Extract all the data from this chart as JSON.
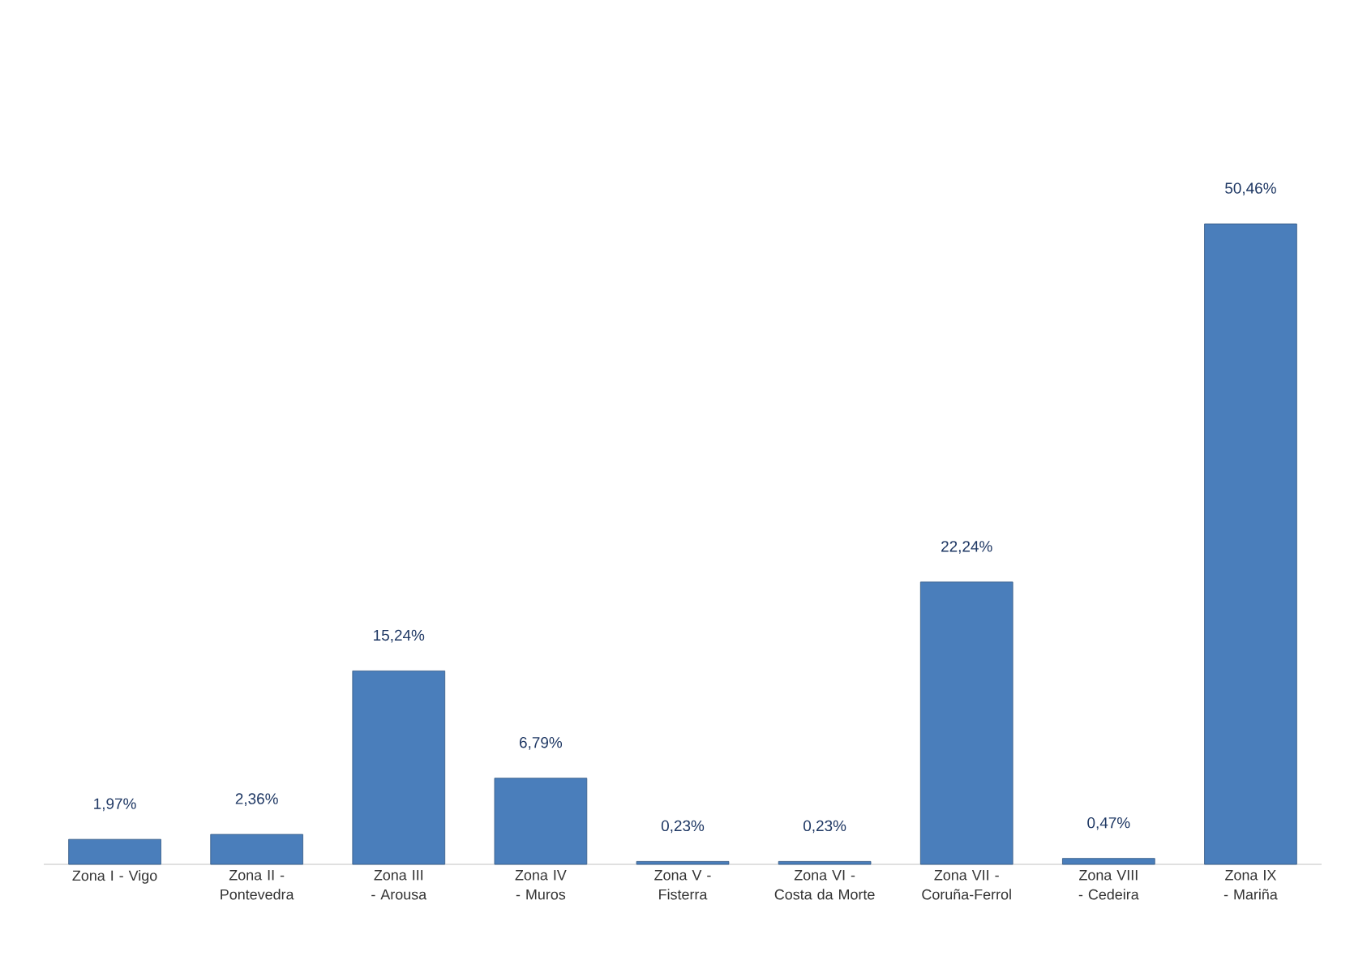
{
  "chart_data": {
    "type": "bar",
    "categories": [
      "Zona I - Vigo",
      "Zona II - Pontevedra",
      "Zona III - Arousa",
      "Zona IV - Muros",
      "Zona V - Fisterra",
      "Zona VI - Costa da Morte",
      "Zona VII - Coruña-Ferrol",
      "Zona VIII - Cedeira",
      "Zona IX - Mariña"
    ],
    "values": [
      1.97,
      2.36,
      15.24,
      6.79,
      0.23,
      0.23,
      22.24,
      0.47,
      50.46
    ],
    "value_labels": [
      "1,97%",
      "2,36%",
      "15,24%",
      "6,79%",
      "0,23%",
      "0,23%",
      "22,24%",
      "0,47%",
      "50,46%"
    ],
    "color": "#4a7ebb"
  }
}
